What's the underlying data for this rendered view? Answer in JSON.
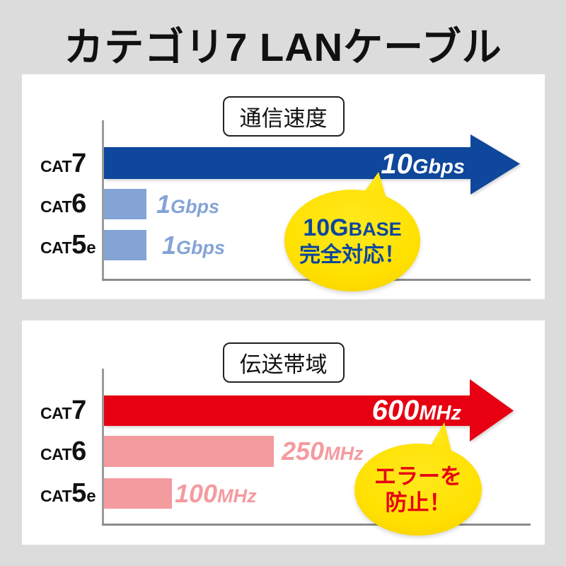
{
  "page": {
    "title": "カテゴリ7 LANケーブル",
    "background": "#dcdcdc"
  },
  "colors": {
    "speed_arrow": "#0e479b",
    "speed_bar_light": "#84a4d6",
    "band_arrow": "#e60012",
    "band_bar_light": "#f49ba0",
    "callout_bg": "#ffe000",
    "callout_text_speed": "#0e479b",
    "callout_text_band": "#e60012",
    "title_color": "#111111",
    "axis_gray": "#9b9b9b"
  },
  "chart_data": [
    {
      "type": "bar",
      "orientation": "horizontal",
      "title": "通信速度",
      "categories": [
        "CAT7",
        "CAT6",
        "CAT5e"
      ],
      "values": [
        10,
        1,
        1
      ],
      "unit": "Gbps",
      "xlim": [
        0,
        10
      ],
      "grid": false,
      "legend": "none",
      "rows": [
        {
          "cat": "CAT",
          "num": "7",
          "sub": "",
          "val": "10",
          "unit": "Gbps"
        },
        {
          "cat": "CAT",
          "num": "6",
          "sub": "",
          "val": "1",
          "unit": "Gbps"
        },
        {
          "cat": "CAT",
          "num": "5",
          "sub": "e",
          "val": "1",
          "unit": "Gbps"
        }
      ],
      "callout": {
        "line1_big": "10G",
        "line1_small": "BASE",
        "line2": "完全対応！"
      }
    },
    {
      "type": "bar",
      "orientation": "horizontal",
      "title": "伝送帯域",
      "categories": [
        "CAT7",
        "CAT6",
        "CAT5e"
      ],
      "values": [
        600,
        250,
        100
      ],
      "unit": "MHz",
      "xlim": [
        0,
        600
      ],
      "grid": false,
      "legend": "none",
      "rows": [
        {
          "cat": "CAT",
          "num": "7",
          "sub": "",
          "val": "600",
          "unit": "MHz"
        },
        {
          "cat": "CAT",
          "num": "6",
          "sub": "",
          "val": "250",
          "unit": "MHz"
        },
        {
          "cat": "CAT",
          "num": "5",
          "sub": "e",
          "val": "100",
          "unit": "MHz"
        }
      ],
      "callout": {
        "line1": "エラーを",
        "line2": "防止！"
      }
    }
  ]
}
